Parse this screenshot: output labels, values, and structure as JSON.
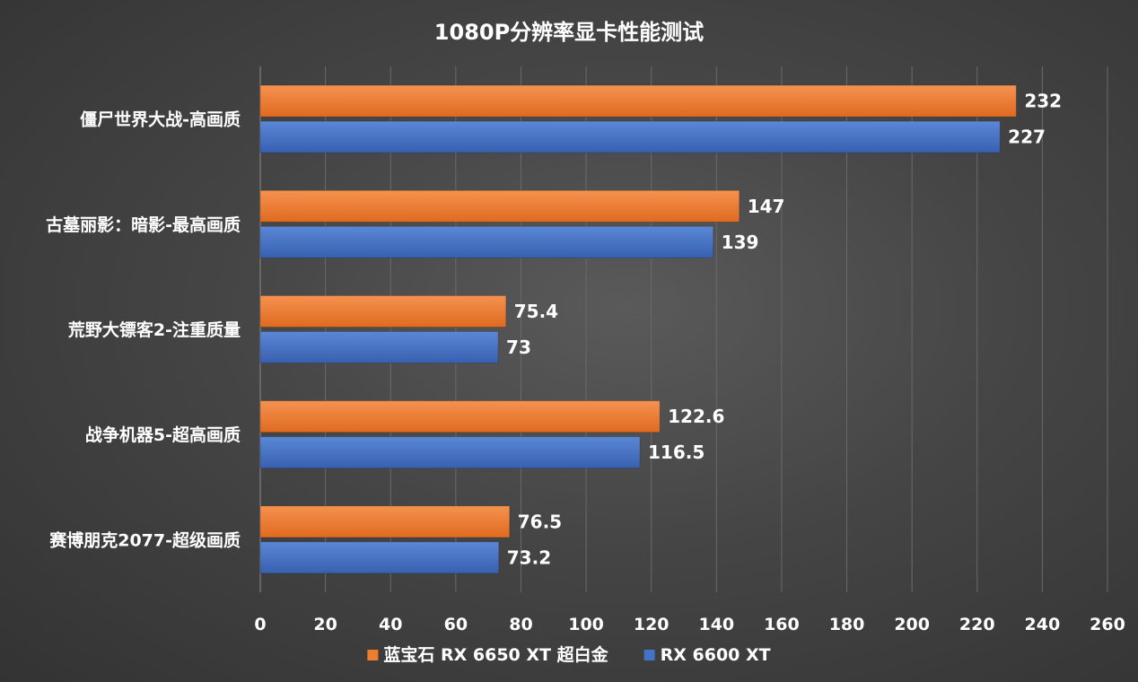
{
  "chart_data": {
    "type": "bar",
    "orientation": "horizontal",
    "title": "1080P分辨率显卡性能测试",
    "categories": [
      "僵尸世界大战-高画质",
      "古墓丽影：暗影-最高画质",
      "荒野大镖客2-注重质量",
      "战争机器5-超高画质",
      "赛博朋克2077-超级画质"
    ],
    "series": [
      {
        "name": "蓝宝石 RX 6650 XT 超白金",
        "color": "#ed7d31",
        "values": [
          232,
          147,
          75.4,
          122.6,
          76.5
        ],
        "labels": [
          "232",
          "147",
          "75.4",
          "122.6",
          "76.5"
        ]
      },
      {
        "name": "RX 6600 XT",
        "color": "#4472c4",
        "values": [
          227,
          139,
          73,
          116.5,
          73.2
        ],
        "labels": [
          "227",
          "139",
          "73",
          "116.5",
          "73.2"
        ]
      }
    ],
    "xlim": [
      0,
      260
    ],
    "xticks": [
      0,
      20,
      40,
      60,
      80,
      100,
      120,
      140,
      160,
      180,
      200,
      220,
      240,
      260
    ],
    "xlabel": "",
    "ylabel": "",
    "grid": true,
    "legend_position": "bottom"
  }
}
